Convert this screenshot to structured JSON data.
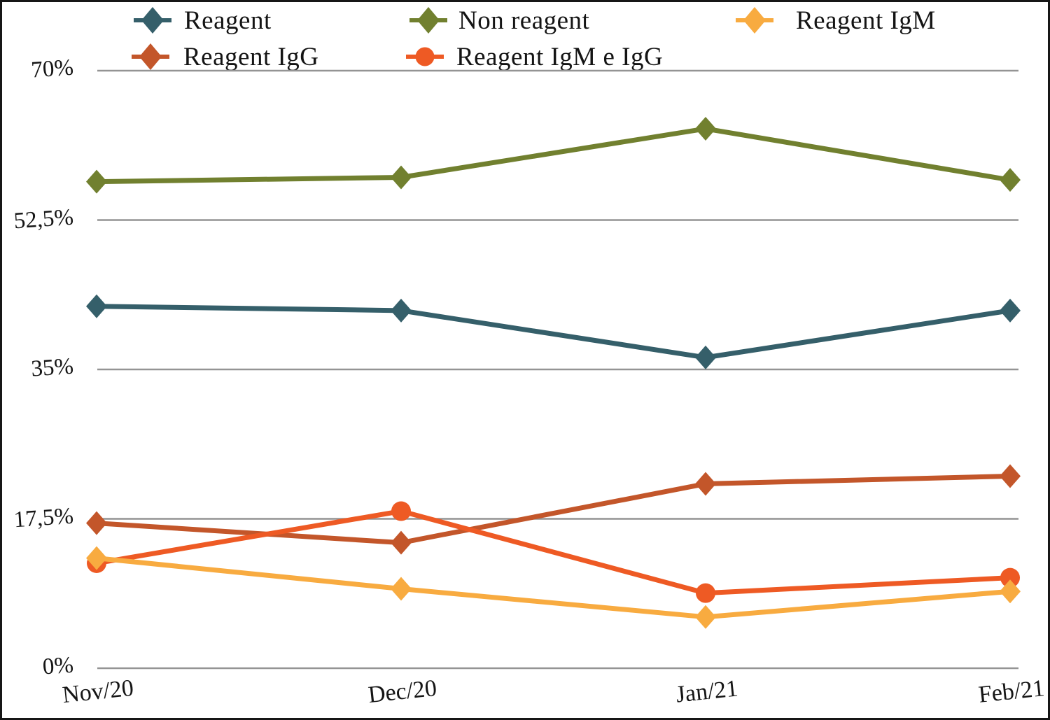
{
  "chart_data": {
    "type": "line",
    "title": "",
    "xlabel": "",
    "ylabel": "",
    "ylim": [
      0,
      70
    ],
    "grid": "horizontal",
    "legend_position": "top",
    "decimal_separator": ",",
    "categories": [
      "Nov/20",
      "Dec/20",
      "Jan/21",
      "Feb/21"
    ],
    "y_ticks": [
      {
        "label": "0%",
        "value": 0
      },
      {
        "label": "17,5%",
        "value": 17.5
      },
      {
        "label": "35%",
        "value": 35
      },
      {
        "label": "52,5%",
        "value": 52.5
      },
      {
        "label": "70%",
        "value": 70
      }
    ],
    "series": [
      {
        "name": "Reagent",
        "color": "#355f6a",
        "marker": "diamond",
        "values": [
          42.4,
          41.9,
          36.4,
          41.9
        ]
      },
      {
        "name": "Non reagent",
        "color": "#71802f",
        "marker": "diamond",
        "values": [
          57.0,
          57.5,
          63.2,
          57.2
        ]
      },
      {
        "name": "Reagent IgM",
        "color": "#f8ab40",
        "marker": "diamond",
        "values": [
          12.9,
          9.3,
          6.0,
          9.0
        ]
      },
      {
        "name": "Reagent IgG",
        "color": "#c3562a",
        "marker": "diamond",
        "values": [
          17.0,
          14.7,
          21.6,
          22.5
        ]
      },
      {
        "name": "Reagent IgM e IgG",
        "color": "#ee5a24",
        "marker": "circle",
        "values": [
          12.3,
          18.4,
          8.8,
          10.6
        ]
      }
    ],
    "draw_order": [
      1,
      0,
      3,
      4,
      2
    ],
    "gridline_color": "#949494"
  }
}
